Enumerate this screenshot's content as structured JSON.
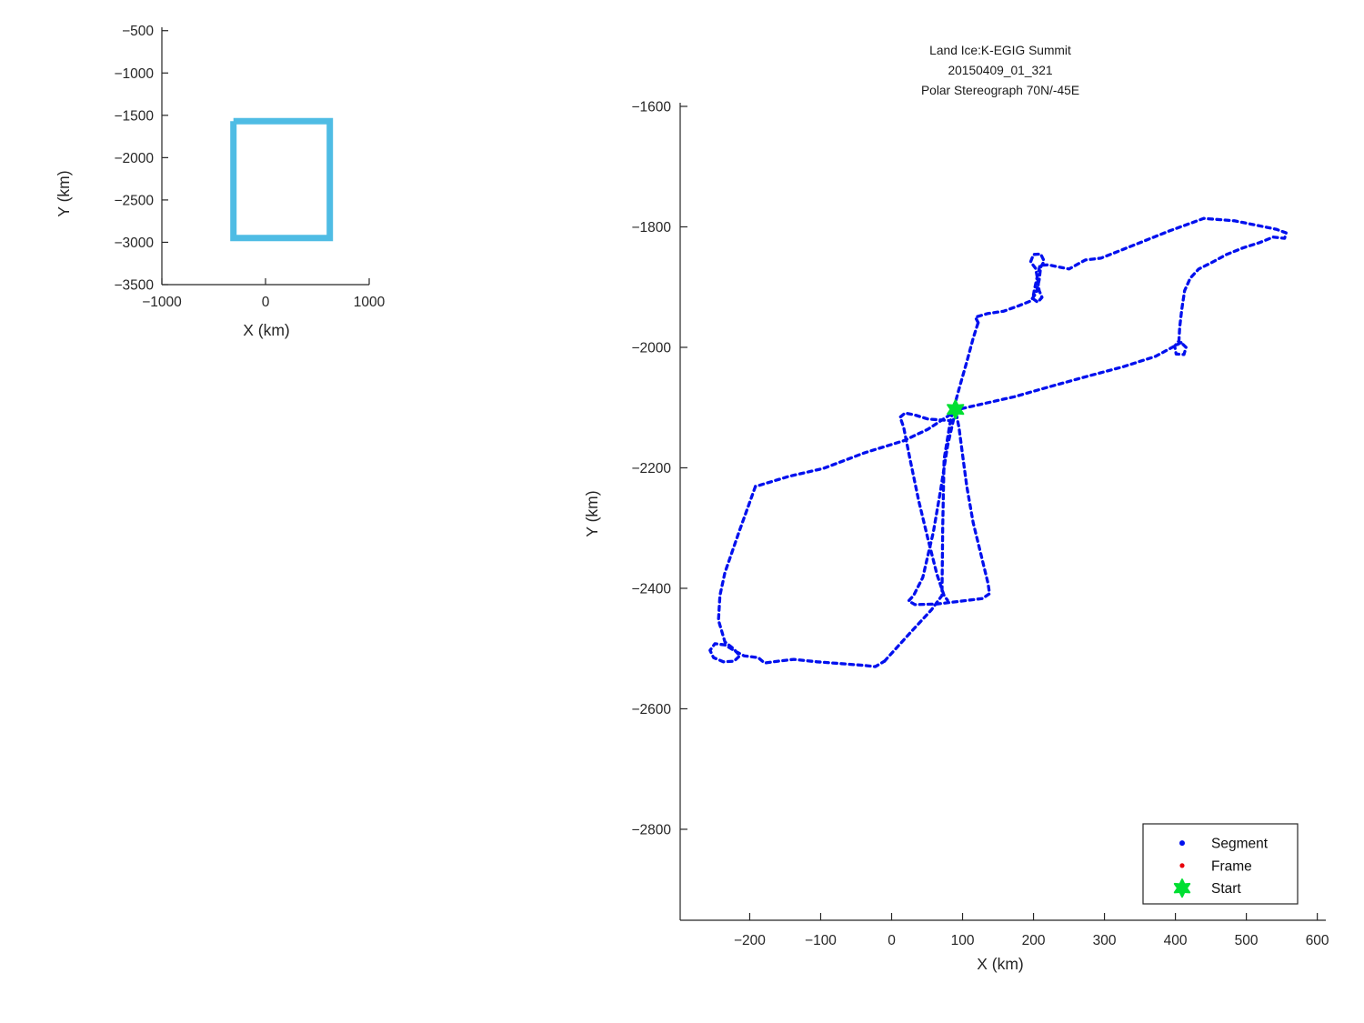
{
  "figure": {
    "background": "#ffffff",
    "axis_color": "#262626",
    "text_color": "#262626"
  },
  "chart_data": [
    {
      "id": "overview",
      "type": "line",
      "title": "",
      "xlabel": "X (km)",
      "ylabel": "Y (km)",
      "xlim": [
        -1000,
        1000
      ],
      "ylim": [
        -3500,
        -460
      ],
      "xticks": [
        -1000,
        0,
        1000
      ],
      "yticks": [
        -500,
        -1000,
        -1500,
        -2000,
        -2500,
        -3000,
        -3500
      ],
      "grid": false,
      "box": false,
      "legend": null,
      "series": [
        {
          "name": "flight-extent-box",
          "color": "#4FBCE4",
          "line_width": 7,
          "style": "solid",
          "points": [
            [
              -310,
              -1570
            ],
            [
              620,
              -1570
            ],
            [
              620,
              -2950
            ],
            [
              -310,
              -2950
            ],
            [
              -310,
              -1570
            ]
          ]
        }
      ]
    },
    {
      "id": "flight-track",
      "type": "line",
      "title_lines": [
        "Land Ice:K-EGIG Summit",
        "20150409_01_321",
        "Polar Stereograph 70N/-45E"
      ],
      "xlabel": "X (km)",
      "ylabel": "Y (km)",
      "xlim": [
        -298,
        612
      ],
      "ylim": [
        -2951,
        -1594
      ],
      "xticks": [
        -200,
        -100,
        0,
        100,
        200,
        300,
        400,
        500,
        600
      ],
      "yticks": [
        -1600,
        -1800,
        -2000,
        -2200,
        -2400,
        -2600,
        -2800
      ],
      "grid": false,
      "box": false,
      "track_color": "#0010EE",
      "track_style": "dashed",
      "start_point": [
        90,
        -2103
      ],
      "start_color": "#00DF32",
      "legend": {
        "position": "southeast",
        "entries": [
          {
            "label": "Segment",
            "marker": "dot",
            "color": "#0010EE"
          },
          {
            "label": "Frame",
            "marker": "dot",
            "color": "#E8000B"
          },
          {
            "label": "Start",
            "marker": "hexagram",
            "color": "#00DF32"
          }
        ]
      },
      "segments": [
        [
          [
            408,
            -1992
          ],
          [
            372,
            -2015
          ],
          [
            327,
            -2032
          ],
          [
            276,
            -2048
          ],
          [
            224,
            -2065
          ],
          [
            173,
            -2082
          ],
          [
            128,
            -2094
          ],
          [
            94,
            -2103
          ],
          [
            51,
            -2136
          ],
          [
            17,
            -2155
          ],
          [
            -38,
            -2175
          ],
          [
            -96,
            -2201
          ],
          [
            -144,
            -2214
          ],
          [
            -192,
            -2231
          ]
        ],
        [
          [
            -192,
            -2231
          ],
          [
            -215,
            -2306
          ],
          [
            -235,
            -2374
          ],
          [
            -242,
            -2412
          ],
          [
            -244,
            -2453
          ],
          [
            -235,
            -2489
          ],
          [
            -223,
            -2500
          ],
          [
            -214,
            -2512
          ],
          [
            -222,
            -2521
          ],
          [
            -237,
            -2522
          ],
          [
            -251,
            -2515
          ],
          [
            -256,
            -2503
          ],
          [
            -249,
            -2492
          ],
          [
            -235,
            -2494
          ],
          [
            -221,
            -2504
          ],
          [
            -208,
            -2512
          ],
          [
            -188,
            -2515
          ],
          [
            -179,
            -2524
          ],
          [
            -160,
            -2521
          ],
          [
            -138,
            -2518
          ],
          [
            -105,
            -2522
          ],
          [
            -71,
            -2525
          ],
          [
            -38,
            -2528
          ],
          [
            -23,
            -2530
          ],
          [
            -10,
            -2521
          ]
        ],
        [
          [
            -10,
            -2521
          ],
          [
            23,
            -2478
          ],
          [
            56,
            -2436
          ],
          [
            71,
            -2412
          ],
          [
            72,
            -2299
          ],
          [
            74,
            -2186
          ],
          [
            83,
            -2121
          ],
          [
            96,
            -2065
          ],
          [
            106,
            -2024
          ],
          [
            115,
            -1985
          ],
          [
            122,
            -1959
          ]
        ],
        [
          [
            122,
            -1959
          ],
          [
            118,
            -1950
          ],
          [
            135,
            -1944
          ],
          [
            158,
            -1940
          ],
          [
            179,
            -1931
          ],
          [
            196,
            -1923
          ],
          [
            204,
            -1909
          ],
          [
            208,
            -1888
          ],
          [
            210,
            -1867
          ],
          [
            215,
            -1857
          ],
          [
            210,
            -1845
          ],
          [
            200,
            -1846
          ],
          [
            196,
            -1858
          ],
          [
            203,
            -1869
          ],
          [
            206,
            -1888
          ],
          [
            208,
            -1906
          ],
          [
            212,
            -1917
          ],
          [
            206,
            -1925
          ],
          [
            199,
            -1919
          ],
          [
            201,
            -1906
          ],
          [
            205,
            -1884
          ],
          [
            209,
            -1864
          ],
          [
            221,
            -1863
          ],
          [
            233,
            -1866
          ],
          [
            250,
            -1870
          ],
          [
            273,
            -1855
          ],
          [
            295,
            -1852
          ],
          [
            340,
            -1831
          ],
          [
            391,
            -1807
          ],
          [
            440,
            -1786
          ],
          [
            483,
            -1790
          ],
          [
            517,
            -1798
          ],
          [
            542,
            -1804
          ],
          [
            556,
            -1810
          ],
          [
            554,
            -1819
          ],
          [
            538,
            -1817
          ],
          [
            519,
            -1826
          ],
          [
            495,
            -1835
          ],
          [
            472,
            -1846
          ],
          [
            450,
            -1860
          ],
          [
            433,
            -1870
          ],
          [
            421,
            -1885
          ],
          [
            413,
            -1906
          ],
          [
            409,
            -1937
          ],
          [
            406,
            -1967
          ],
          [
            405,
            -1989
          ],
          [
            399,
            -1998
          ],
          [
            401,
            -2011
          ],
          [
            412,
            -2012
          ],
          [
            415,
            -2000
          ],
          [
            408,
            -1992
          ]
        ],
        [
          [
            90,
            -2106
          ],
          [
            79,
            -2163
          ],
          [
            69,
            -2238
          ],
          [
            59,
            -2306
          ],
          [
            44,
            -2382
          ],
          [
            31,
            -2412
          ],
          [
            24,
            -2421
          ],
          [
            33,
            -2427
          ],
          [
            64,
            -2426
          ],
          [
            100,
            -2421
          ],
          [
            128,
            -2417
          ],
          [
            138,
            -2409
          ],
          [
            136,
            -2392
          ],
          [
            126,
            -2344
          ],
          [
            115,
            -2291
          ],
          [
            106,
            -2231
          ],
          [
            100,
            -2178
          ],
          [
            95,
            -2133
          ],
          [
            91,
            -2110
          ]
        ],
        [
          [
            86,
            -2122
          ],
          [
            51,
            -2119
          ],
          [
            32,
            -2112
          ],
          [
            19,
            -2109
          ],
          [
            12,
            -2116
          ],
          [
            17,
            -2133
          ],
          [
            26,
            -2186
          ],
          [
            38,
            -2254
          ],
          [
            51,
            -2317
          ],
          [
            64,
            -2377
          ],
          [
            74,
            -2412
          ],
          [
            79,
            -2420
          ]
        ]
      ]
    }
  ]
}
